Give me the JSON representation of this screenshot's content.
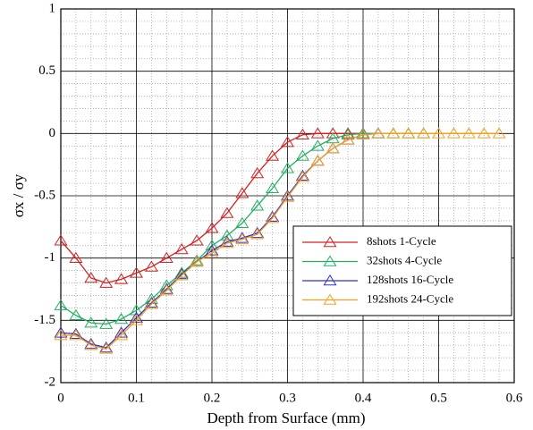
{
  "chart_data": {
    "type": "line",
    "xlabel": "Depth from Surface (mm)",
    "ylabel": "σx / σy",
    "xlim": [
      0,
      0.6
    ],
    "xticks": [
      0,
      0.1,
      0.2,
      0.3,
      0.4,
      0.5,
      0.6
    ],
    "ylim": [
      -2,
      1
    ],
    "yticks": [
      -2,
      -1.5,
      -1,
      -0.5,
      0,
      0.5,
      1
    ],
    "grid": true,
    "minor_grid": true,
    "legend": "right",
    "marker": "triangle",
    "series": [
      {
        "name": "8shots 1-Cycle",
        "color": "#d42020",
        "x": [
          0,
          0.02,
          0.04,
          0.06,
          0.08,
          0.1,
          0.12,
          0.14,
          0.16,
          0.18,
          0.2,
          0.22,
          0.24,
          0.26,
          0.28,
          0.3,
          0.32,
          0.34,
          0.36,
          0.38,
          0.4
        ],
        "values": [
          -0.86,
          -1.0,
          -1.16,
          -1.2,
          -1.17,
          -1.12,
          -1.07,
          -1.0,
          -0.93,
          -0.86,
          -0.76,
          -0.64,
          -0.48,
          -0.32,
          -0.18,
          -0.07,
          -0.01,
          0,
          0,
          0,
          0
        ]
      },
      {
        "name": "32shots 4-Cycle",
        "color": "#20b060",
        "x": [
          0,
          0.02,
          0.04,
          0.06,
          0.08,
          0.1,
          0.12,
          0.14,
          0.16,
          0.18,
          0.2,
          0.22,
          0.24,
          0.26,
          0.28,
          0.3,
          0.32,
          0.34,
          0.36,
          0.38,
          0.4,
          0.42,
          0.44,
          0.46,
          0.48
        ],
        "values": [
          -1.38,
          -1.46,
          -1.52,
          -1.53,
          -1.49,
          -1.42,
          -1.33,
          -1.22,
          -1.12,
          -1.02,
          -0.9,
          -0.82,
          -0.72,
          -0.58,
          -0.44,
          -0.28,
          -0.18,
          -0.1,
          -0.04,
          -0.01,
          0,
          0,
          0,
          0,
          0
        ]
      },
      {
        "name": "128shots 16-Cycle",
        "color": "#3030d0",
        "x": [
          0,
          0.02,
          0.04,
          0.06,
          0.08,
          0.1,
          0.12,
          0.14,
          0.16,
          0.18,
          0.2,
          0.22,
          0.24,
          0.26,
          0.28,
          0.3,
          0.32,
          0.34,
          0.36,
          0.38,
          0.4,
          0.42
        ],
        "values": [
          -1.6,
          -1.61,
          -1.69,
          -1.72,
          -1.6,
          -1.48,
          -1.36,
          -1.25,
          -1.13,
          -1.03,
          -0.94,
          -0.87,
          -0.84,
          -0.8,
          -0.67,
          -0.5,
          -0.34,
          -0.22,
          -0.12,
          -0.05,
          -0.01,
          0
        ]
      },
      {
        "name": "192shots 24-Cycle",
        "color": "#f5a020",
        "x": [
          0,
          0.02,
          0.04,
          0.06,
          0.08,
          0.1,
          0.12,
          0.14,
          0.16,
          0.18,
          0.2,
          0.22,
          0.24,
          0.26,
          0.28,
          0.3,
          0.32,
          0.34,
          0.36,
          0.38,
          0.4,
          0.42,
          0.44,
          0.46,
          0.48,
          0.5,
          0.52,
          0.54,
          0.56,
          0.58
        ],
        "values": [
          -1.62,
          -1.62,
          -1.7,
          -1.73,
          -1.62,
          -1.5,
          -1.37,
          -1.26,
          -1.14,
          -1.03,
          -0.96,
          -0.88,
          -0.85,
          -0.81,
          -0.68,
          -0.51,
          -0.35,
          -0.22,
          -0.12,
          -0.05,
          -0.01,
          0,
          0,
          0,
          0,
          0,
          0,
          0,
          0,
          0
        ]
      }
    ]
  }
}
